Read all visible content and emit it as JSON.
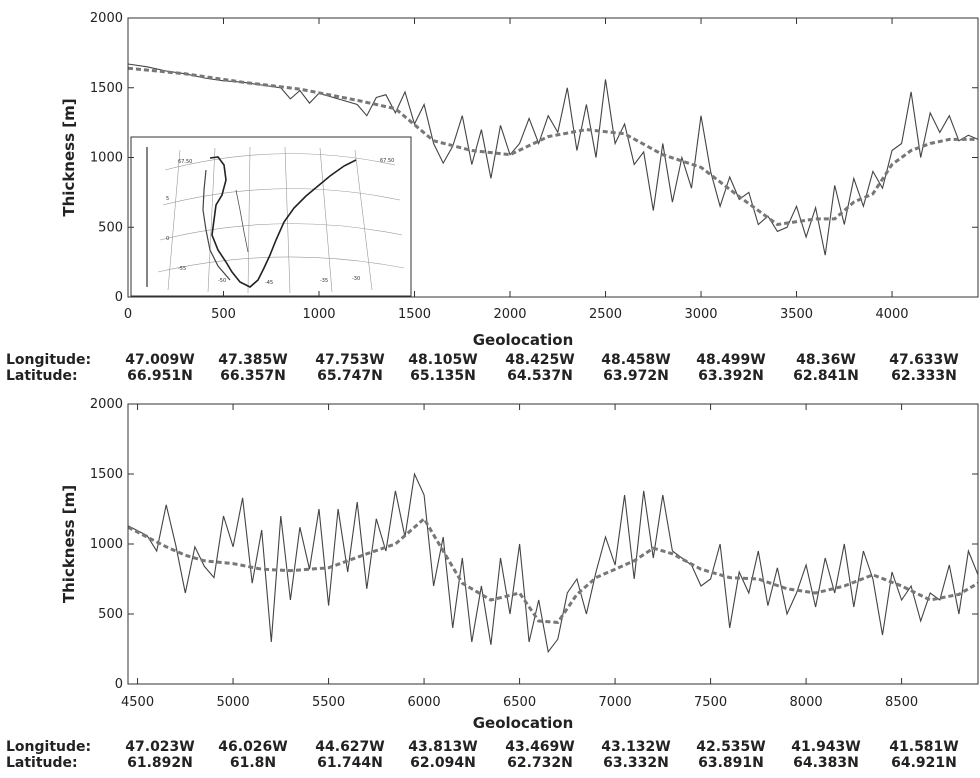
{
  "chart_data": [
    {
      "type": "line",
      "ylabel": "Thickness [m]",
      "xlabel": "Geolocation",
      "xlim": [
        0,
        4450
      ],
      "ylim": [
        0,
        2000
      ],
      "x_ticks": [
        0,
        500,
        1000,
        1500,
        2000,
        2500,
        3000,
        3500,
        4000
      ],
      "y_ticks": [
        0,
        500,
        1000,
        1500,
        2000
      ],
      "geolocation": {
        "longitude_label": "Longitude:",
        "latitude_label": "Latitude:",
        "longitudes": [
          "47.009W",
          "47.385W",
          "47.753W",
          "48.105W",
          "48.425W",
          "48.458W",
          "48.499W",
          "48.36W",
          "47.633W"
        ],
        "latitudes": [
          "66.951N",
          "66.357N",
          "65.747N",
          "65.135N",
          "64.537N",
          "63.972N",
          "63.392N",
          "62.841N",
          "62.333N"
        ]
      },
      "inset_map": {
        "labels": [
          "67.50",
          "67.50",
          "-55",
          "-50",
          "-45",
          "-35",
          "-30",
          "0",
          "5"
        ]
      },
      "series": [
        {
          "style": "solid",
          "x": [
            0,
            100,
            200,
            300,
            400,
            500,
            600,
            700,
            800,
            850,
            900,
            950,
            1000,
            1100,
            1200,
            1250,
            1300,
            1350,
            1400,
            1450,
            1500,
            1550,
            1600,
            1650,
            1700,
            1750,
            1800,
            1850,
            1900,
            1950,
            2000,
            2050,
            2100,
            2150,
            2200,
            2250,
            2300,
            2350,
            2400,
            2450,
            2500,
            2550,
            2600,
            2650,
            2700,
            2750,
            2800,
            2850,
            2900,
            2950,
            3000,
            3050,
            3100,
            3150,
            3200,
            3250,
            3300,
            3350,
            3400,
            3450,
            3500,
            3550,
            3600,
            3650,
            3700,
            3750,
            3800,
            3850,
            3900,
            3950,
            4000,
            4050,
            4100,
            4150,
            4200,
            4250,
            4300,
            4350,
            4400,
            4450
          ],
          "values": [
            1670,
            1650,
            1620,
            1600,
            1570,
            1550,
            1540,
            1520,
            1500,
            1420,
            1480,
            1390,
            1460,
            1420,
            1380,
            1300,
            1430,
            1450,
            1320,
            1470,
            1240,
            1380,
            1100,
            960,
            1080,
            1300,
            950,
            1200,
            850,
            1230,
            1020,
            1100,
            1280,
            1100,
            1300,
            1180,
            1500,
            1050,
            1380,
            1000,
            1560,
            1100,
            1240,
            950,
            1040,
            620,
            1100,
            680,
            1000,
            780,
            1300,
            900,
            650,
            860,
            700,
            750,
            520,
            580,
            470,
            500,
            650,
            430,
            640,
            300,
            800,
            520,
            850,
            650,
            900,
            780,
            1050,
            1100,
            1470,
            1000,
            1320,
            1180,
            1300,
            1120,
            1160,
            1130
          ]
        },
        {
          "style": "dashed",
          "x": [
            0,
            300,
            600,
            900,
            1200,
            1400,
            1600,
            1800,
            2000,
            2200,
            2400,
            2600,
            2800,
            3000,
            3200,
            3400,
            3600,
            3700,
            3800,
            3900,
            4000,
            4100,
            4200,
            4300,
            4450
          ],
          "values": [
            1640,
            1600,
            1540,
            1490,
            1410,
            1350,
            1120,
            1050,
            1020,
            1150,
            1200,
            1170,
            1020,
            930,
            720,
            520,
            560,
            560,
            680,
            740,
            950,
            1050,
            1100,
            1130,
            1130
          ]
        }
      ]
    },
    {
      "type": "line",
      "ylabel": "Thickness [m]",
      "xlabel": "Geolocation",
      "xlim": [
        4450,
        8900
      ],
      "ylim": [
        0,
        2000
      ],
      "x_ticks": [
        4500,
        5000,
        5500,
        6000,
        6500,
        7000,
        7500,
        8000,
        8500
      ],
      "y_ticks": [
        0,
        500,
        1000,
        1500,
        2000
      ],
      "geolocation": {
        "longitude_label": "Longitude:",
        "latitude_label": "Latitude:",
        "longitudes": [
          "47.023W",
          "46.026W",
          "44.627W",
          "43.813W",
          "43.469W",
          "43.132W",
          "42.535W",
          "41.943W",
          "41.581W"
        ],
        "latitudes": [
          "61.892N",
          "61.8N",
          "61.744N",
          "62.094N",
          "62.732N",
          "63.332N",
          "63.891N",
          "64.383N",
          "64.921N"
        ]
      },
      "series": [
        {
          "style": "solid",
          "x": [
            4450,
            4550,
            4600,
            4650,
            4700,
            4750,
            4800,
            4850,
            4900,
            4950,
            5000,
            5050,
            5100,
            5150,
            5200,
            5250,
            5300,
            5350,
            5400,
            5450,
            5500,
            5550,
            5600,
            5650,
            5700,
            5750,
            5800,
            5850,
            5900,
            5950,
            6000,
            6050,
            6100,
            6150,
            6200,
            6250,
            6300,
            6350,
            6400,
            6450,
            6500,
            6550,
            6600,
            6650,
            6700,
            6750,
            6800,
            6850,
            6900,
            6950,
            7000,
            7050,
            7100,
            7150,
            7200,
            7250,
            7300,
            7350,
            7400,
            7450,
            7500,
            7550,
            7600,
            7650,
            7700,
            7750,
            7800,
            7850,
            7900,
            7950,
            8000,
            8050,
            8100,
            8150,
            8200,
            8250,
            8300,
            8350,
            8400,
            8450,
            8500,
            8550,
            8600,
            8650,
            8700,
            8750,
            8800,
            8850,
            8900
          ],
          "values": [
            1130,
            1060,
            950,
            1280,
            990,
            650,
            980,
            840,
            760,
            1200,
            980,
            1330,
            720,
            1100,
            300,
            1200,
            600,
            1120,
            820,
            1250,
            560,
            1250,
            800,
            1300,
            680,
            1180,
            950,
            1380,
            1050,
            1500,
            1350,
            700,
            1050,
            400,
            900,
            300,
            700,
            280,
            900,
            500,
            1000,
            300,
            600,
            230,
            320,
            650,
            750,
            500,
            800,
            1050,
            850,
            1350,
            750,
            1380,
            900,
            1350,
            950,
            900,
            850,
            700,
            750,
            1000,
            400,
            800,
            650,
            950,
            560,
            830,
            500,
            650,
            850,
            550,
            900,
            650,
            1000,
            550,
            950,
            750,
            350,
            800,
            600,
            700,
            450,
            650,
            600,
            850,
            500,
            950,
            780
          ]
        },
        {
          "style": "dashed",
          "x": [
            4450,
            4550,
            4650,
            4750,
            4850,
            5000,
            5150,
            5300,
            5500,
            5700,
            5850,
            6000,
            6100,
            6200,
            6350,
            6500,
            6600,
            6700,
            6800,
            6900,
            7000,
            7100,
            7200,
            7300,
            7450,
            7600,
            7750,
            7900,
            8050,
            8200,
            8350,
            8500,
            8650,
            8800,
            8900
          ],
          "values": [
            1120,
            1050,
            980,
            920,
            880,
            860,
            820,
            810,
            830,
            930,
            1000,
            1180,
            950,
            720,
            600,
            650,
            450,
            440,
            640,
            760,
            820,
            880,
            970,
            930,
            820,
            760,
            750,
            680,
            650,
            700,
            780,
            700,
            600,
            640,
            720
          ]
        }
      ]
    }
  ]
}
